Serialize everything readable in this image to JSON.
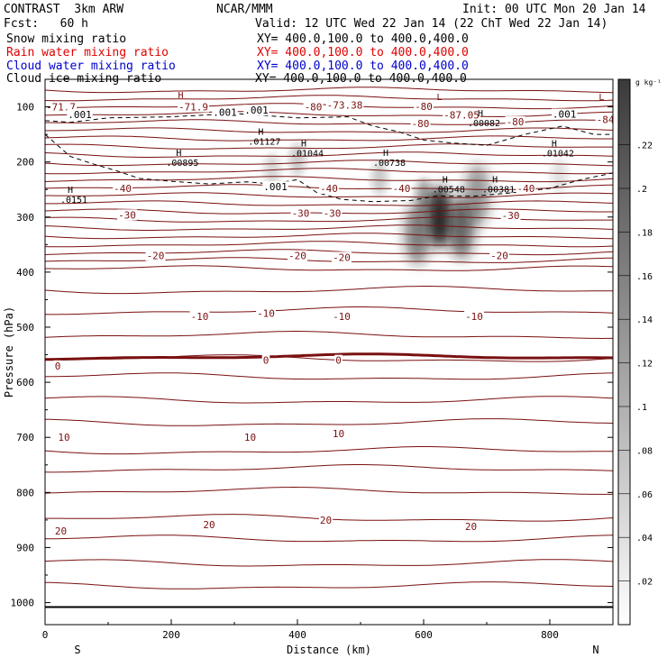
{
  "header": {
    "left_title": "CONTRAST  3km ARW",
    "center_title": "NCAR/MMM",
    "init": "Init: 00 UTC Mon 20 Jan 14",
    "fcst": "Fcst:   60 h",
    "valid": "Valid: 12 UTC Wed 22 Jan 14 (22 ChT Wed 22 Jan 14)",
    "fields": [
      {
        "name": "Snow mixing ratio",
        "xy": "XY= 400.0,100.0 to 400.0,400.0",
        "color": "#000000"
      },
      {
        "name": "Rain water mixing ratio",
        "xy": "XY= 400.0,100.0 to 400.0,400.0",
        "color": "#e00000"
      },
      {
        "name": "Cloud water mixing ratio",
        "xy": "XY= 400.0,100.0 to 400.0,400.0",
        "color": "#0000cc"
      },
      {
        "name": "Cloud ice mixing ratio",
        "xy": "XY= 400.0,100.0 to 400.0,400.0",
        "color": "#000000"
      }
    ]
  },
  "chart_data": {
    "type": "cross-section",
    "xlabel": "Distance (km)",
    "ylabel": "Pressure (hPa)",
    "xlim": [
      0,
      900
    ],
    "ylim": [
      50,
      1040
    ],
    "x_ticks": [
      0,
      200,
      400,
      600,
      800
    ],
    "y_ticks": [
      100,
      200,
      300,
      400,
      500,
      600,
      700,
      800,
      900,
      1000
    ],
    "end_labels": {
      "left": "S",
      "right": "N"
    },
    "colorbar": {
      "unit": "g kg⁻¹",
      "ticks": [
        ".02",
        ".04",
        ".06",
        ".08",
        ".1",
        ".12",
        ".14",
        ".16",
        ".18",
        ".2",
        ".22"
      ],
      "tick_values": [
        0.02,
        0.04,
        0.06,
        0.08,
        0.1,
        0.12,
        0.14,
        0.16,
        0.18,
        0.2,
        0.22
      ],
      "max": 0.25
    },
    "temperature_colour": "#7a1010",
    "temperature_labels": [
      {
        "text": "-71.7",
        "x": 25,
        "p": 100
      },
      {
        "text": "-71.9",
        "x": 235,
        "p": 100
      },
      {
        "text": "-80",
        "x": 425,
        "p": 100
      },
      {
        "text": "-73.38",
        "x": 475,
        "p": 97
      },
      {
        "text": "-80",
        "x": 600,
        "p": 99
      },
      {
        "text": "-87.05",
        "x": 660,
        "p": 115
      },
      {
        "text": "-80",
        "x": 595,
        "p": 130
      },
      {
        "text": "-80",
        "x": 745,
        "p": 127
      },
      {
        "text": "-84",
        "x": 888,
        "p": 123
      },
      {
        "text": "-40",
        "x": 123,
        "p": 248
      },
      {
        "text": "-40",
        "x": 450,
        "p": 248
      },
      {
        "text": "-40",
        "x": 565,
        "p": 248
      },
      {
        "text": "-40",
        "x": 762,
        "p": 248
      },
      {
        "text": "-30",
        "x": 130,
        "p": 296
      },
      {
        "text": "-30",
        "x": 405,
        "p": 293
      },
      {
        "text": "-30",
        "x": 455,
        "p": 293
      },
      {
        "text": "-30",
        "x": 738,
        "p": 297
      },
      {
        "text": "-20",
        "x": 175,
        "p": 370
      },
      {
        "text": "-20",
        "x": 400,
        "p": 370
      },
      {
        "text": "-20",
        "x": 470,
        "p": 373
      },
      {
        "text": "-20",
        "x": 720,
        "p": 370
      },
      {
        "text": "-10",
        "x": 245,
        "p": 480
      },
      {
        "text": "-10",
        "x": 350,
        "p": 475
      },
      {
        "text": "-10",
        "x": 470,
        "p": 480
      },
      {
        "text": "-10",
        "x": 680,
        "p": 480
      },
      {
        "text": "0",
        "x": 20,
        "p": 570
      },
      {
        "text": "0",
        "x": 350,
        "p": 560
      },
      {
        "text": "0",
        "x": 465,
        "p": 560
      },
      {
        "text": "10",
        "x": 30,
        "p": 700
      },
      {
        "text": "10",
        "x": 325,
        "p": 700
      },
      {
        "text": "10",
        "x": 465,
        "p": 693
      },
      {
        "text": "20",
        "x": 25,
        "p": 870
      },
      {
        "text": "20",
        "x": 260,
        "p": 858
      },
      {
        "text": "20",
        "x": 445,
        "p": 850
      },
      {
        "text": "20",
        "x": 675,
        "p": 862
      }
    ],
    "ice_labels": [
      {
        "text": ".001",
        "x": 55,
        "p": 114
      },
      {
        "text": ".001",
        "x": 285,
        "p": 110
      },
      {
        "text": ".001",
        "x": 335,
        "p": 106
      },
      {
        "text": ".001",
        "x": 365,
        "p": 245
      },
      {
        "text": ".001",
        "x": 823,
        "p": 113
      }
    ],
    "extrema": [
      {
        "kind": "H",
        "value": "",
        "x": 215,
        "p": 84
      },
      {
        "kind": "L",
        "value": "",
        "x": 625,
        "p": 88
      },
      {
        "kind": "L",
        "value": "",
        "x": 882,
        "p": 88
      },
      {
        "kind": "H",
        "value": ".00082",
        "x": 690,
        "p": 117
      },
      {
        "kind": "H",
        "value": ".01127",
        "x": 342,
        "p": 151
      },
      {
        "kind": "H",
        "value": ".01044",
        "x": 410,
        "p": 172
      },
      {
        "kind": "H",
        "value": ".01042",
        "x": 807,
        "p": 172
      },
      {
        "kind": "H",
        "value": ".00895",
        "x": 212,
        "p": 189
      },
      {
        "kind": "H",
        "value": ".00738",
        "x": 540,
        "p": 189
      },
      {
        "kind": "H",
        "value": ".00548",
        "x": 634,
        "p": 237
      },
      {
        "kind": "H",
        "value": ".00381",
        "x": 713,
        "p": 237
      },
      {
        "kind": "H",
        "value": ".0151",
        "x": 40,
        "p": 256
      }
    ],
    "cloud_ice_region": {
      "level": 0.001,
      "description": "dashed cloud-ice outline from about 120 to 280 hPa"
    },
    "snow_blobs": [
      {
        "x": 625,
        "p": 300,
        "value": 0.22
      },
      {
        "x": 590,
        "p": 330,
        "value": 0.12
      },
      {
        "x": 660,
        "p": 320,
        "value": 0.14
      },
      {
        "x": 685,
        "p": 260,
        "value": 0.1
      },
      {
        "x": 400,
        "p": 195,
        "value": 0.05
      },
      {
        "x": 360,
        "p": 215,
        "value": 0.04
      },
      {
        "x": 530,
        "p": 230,
        "value": 0.05
      },
      {
        "x": 815,
        "p": 225,
        "value": 0.03
      },
      {
        "x": 600,
        "p": 260,
        "value": 0.08
      }
    ]
  }
}
